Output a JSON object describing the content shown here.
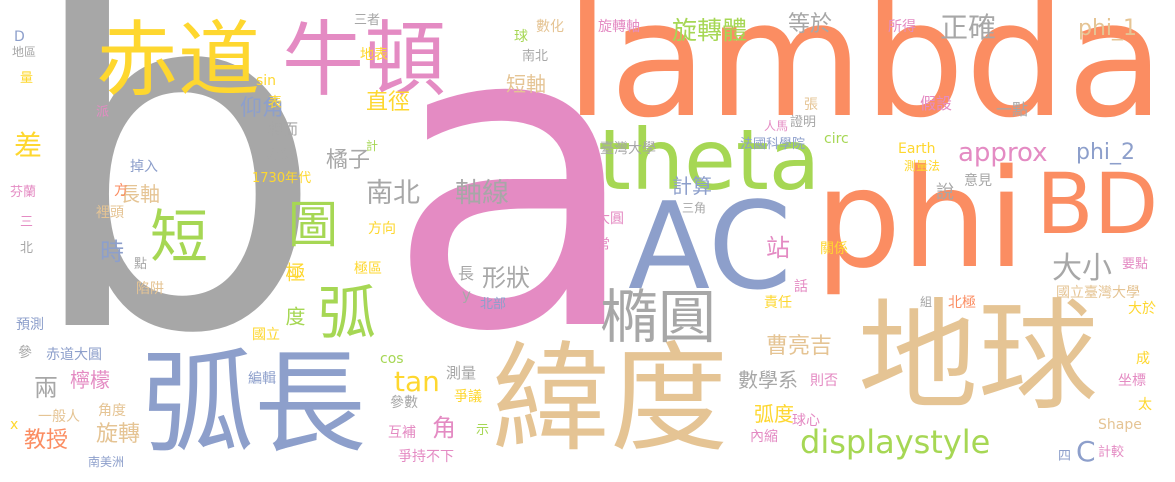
{
  "palette": {
    "gray": "#a7a7a7",
    "pink": "#e48bc3",
    "orange": "#fb8d62",
    "blue": "#8d9fcb",
    "tan": "#e5c494",
    "green": "#a6d754",
    "yellow": "#fed72f"
  },
  "words": [
    {
      "text": "b",
      "color": "gray"
    },
    {
      "text": "a",
      "color": "pink"
    },
    {
      "text": "lambda",
      "color": "orange"
    },
    {
      "text": "phi",
      "color": "orange"
    },
    {
      "text": "AC",
      "color": "blue"
    },
    {
      "text": "BD",
      "color": "orange"
    },
    {
      "text": "theta",
      "color": "green"
    },
    {
      "text": "弧長",
      "color": "blue"
    },
    {
      "text": "緯度",
      "color": "tan"
    },
    {
      "text": "地球",
      "color": "tan"
    },
    {
      "text": "赤道",
      "color": "yellow"
    },
    {
      "text": "牛頓",
      "color": "pink"
    },
    {
      "text": "橢圓",
      "color": "gray"
    },
    {
      "text": "圖",
      "color": "green"
    },
    {
      "text": "短",
      "color": "green"
    },
    {
      "text": "弧",
      "color": "green"
    },
    {
      "text": "displaystyle",
      "color": "green"
    },
    {
      "text": "approx",
      "color": "pink"
    },
    {
      "text": "旋轉體",
      "color": "green"
    },
    {
      "text": "正確",
      "color": "gray"
    },
    {
      "text": "南北",
      "color": "gray"
    },
    {
      "text": "軸線",
      "color": "gray"
    },
    {
      "text": "大小",
      "color": "gray"
    },
    {
      "text": "phi_1",
      "color": "tan"
    },
    {
      "text": "phi_2",
      "color": "blue"
    },
    {
      "text": "C",
      "color": "blue"
    },
    {
      "text": "tan",
      "color": "yellow"
    },
    {
      "text": "仰角",
      "color": "blue"
    },
    {
      "text": "直徑",
      "color": "yellow"
    },
    {
      "text": "橘子",
      "color": "gray"
    },
    {
      "text": "短軸",
      "color": "tan"
    },
    {
      "text": "長軸",
      "color": "tan"
    },
    {
      "text": "等於",
      "color": "gray"
    },
    {
      "text": "計算",
      "color": "blue"
    },
    {
      "text": "形狀",
      "color": "gray"
    },
    {
      "text": "曹亮吉",
      "color": "tan"
    },
    {
      "text": "數學系",
      "color": "gray"
    },
    {
      "text": "旋轉",
      "color": "tan"
    },
    {
      "text": "教授",
      "color": "orange"
    },
    {
      "text": "弧度",
      "color": "yellow"
    },
    {
      "text": "角",
      "color": "pink"
    },
    {
      "text": "檸檬",
      "color": "pink"
    },
    {
      "text": "兩",
      "color": "gray"
    },
    {
      "text": "差",
      "color": "yellow"
    },
    {
      "text": "站",
      "color": "pink"
    },
    {
      "text": "時",
      "color": "blue"
    },
    {
      "text": "旋轉軸",
      "color": "pink"
    },
    {
      "text": "所得",
      "color": "pink"
    },
    {
      "text": "數化",
      "color": "tan"
    },
    {
      "text": "三者",
      "color": "gray"
    },
    {
      "text": "地表",
      "color": "yellow"
    },
    {
      "text": "南北",
      "color": "gray"
    },
    {
      "text": "假設",
      "color": "pink"
    },
    {
      "text": "一點",
      "color": "gray"
    },
    {
      "text": "轉而",
      "color": "gray"
    },
    {
      "text": "亦然",
      "color": "gray"
    },
    {
      "text": "計",
      "color": "green"
    },
    {
      "text": "臺灣大學",
      "color": "gray"
    },
    {
      "text": "法國科學院",
      "color": "blue"
    },
    {
      "text": "證明",
      "color": "gray"
    },
    {
      "text": "人馬",
      "color": "pink"
    },
    {
      "text": "circ",
      "color": "green"
    },
    {
      "text": "張",
      "color": "tan"
    },
    {
      "text": "Earth",
      "color": "yellow"
    },
    {
      "text": "測量法",
      "color": "yellow"
    },
    {
      "text": "意見",
      "color": "gray"
    },
    {
      "text": "說",
      "color": "gray"
    },
    {
      "text": "1730年代",
      "color": "yellow"
    },
    {
      "text": "掉入",
      "color": "blue"
    },
    {
      "text": "方",
      "color": "orange"
    },
    {
      "text": "裡頭",
      "color": "tan"
    },
    {
      "text": "方向",
      "color": "yellow"
    },
    {
      "text": "大圓",
      "color": "pink"
    },
    {
      "text": "三角",
      "color": "gray"
    },
    {
      "text": "常",
      "color": "pink"
    },
    {
      "text": "點",
      "color": "gray"
    },
    {
      "text": "陷阱",
      "color": "tan"
    },
    {
      "text": "極區",
      "color": "yellow"
    },
    {
      "text": "長",
      "color": "gray"
    },
    {
      "text": "y",
      "color": "gray"
    },
    {
      "text": "北部",
      "color": "blue"
    },
    {
      "text": "責任",
      "color": "yellow"
    },
    {
      "text": "北極",
      "color": "orange"
    },
    {
      "text": "國立臺灣大學",
      "color": "tan"
    },
    {
      "text": "關係",
      "color": "yellow"
    },
    {
      "text": "要點",
      "color": "pink"
    },
    {
      "text": "話",
      "color": "pink"
    },
    {
      "text": "組",
      "color": "gray"
    },
    {
      "text": "大於",
      "color": "yellow"
    },
    {
      "text": "國立",
      "color": "yellow"
    },
    {
      "text": "編輯",
      "color": "blue"
    },
    {
      "text": "赤道大圓",
      "color": "blue"
    },
    {
      "text": "測量",
      "color": "gray"
    },
    {
      "text": "參數",
      "color": "gray"
    },
    {
      "text": "cos",
      "color": "green"
    },
    {
      "text": "sin",
      "color": "yellow"
    },
    {
      "text": "表",
      "color": "yellow"
    },
    {
      "text": "爭議",
      "color": "yellow"
    },
    {
      "text": "一般人",
      "color": "tan"
    },
    {
      "text": "角度",
      "color": "tan"
    },
    {
      "text": "互補",
      "color": "pink"
    },
    {
      "text": "示",
      "color": "green"
    },
    {
      "text": "爭持不下",
      "color": "pink"
    },
    {
      "text": "南美洲",
      "color": "blue"
    },
    {
      "text": "內縮",
      "color": "pink"
    },
    {
      "text": "球心",
      "color": "pink"
    },
    {
      "text": "則否",
      "color": "pink"
    },
    {
      "text": "坐標",
      "color": "pink"
    },
    {
      "text": "成",
      "color": "yellow"
    },
    {
      "text": "太",
      "color": "yellow"
    },
    {
      "text": "Shape",
      "color": "tan"
    },
    {
      "text": "四",
      "color": "blue"
    },
    {
      "text": "計較",
      "color": "pink"
    },
    {
      "text": "預測",
      "color": "blue"
    },
    {
      "text": "參",
      "color": "gray"
    },
    {
      "text": "x",
      "color": "yellow"
    },
    {
      "text": "D",
      "color": "blue"
    },
    {
      "text": "地區",
      "color": "gray"
    },
    {
      "text": "量",
      "color": "yellow"
    },
    {
      "text": "派",
      "color": "pink"
    },
    {
      "text": "芬蘭",
      "color": "pink"
    },
    {
      "text": "三",
      "color": "pink"
    },
    {
      "text": "北",
      "color": "gray"
    },
    {
      "text": "球",
      "color": "green"
    },
    {
      "text": "二",
      "color": "yellow"
    },
    {
      "text": "極",
      "color": "yellow"
    },
    {
      "text": "度",
      "color": "green"
    }
  ]
}
